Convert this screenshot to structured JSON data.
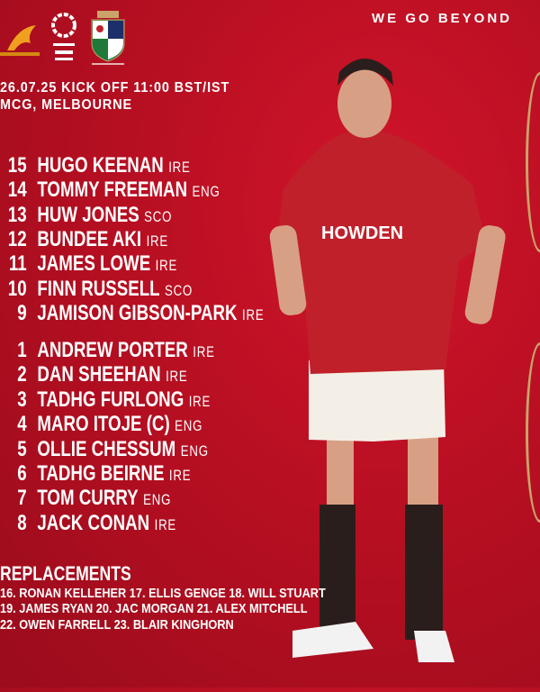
{
  "header": {
    "tagline": "WE GO BEYOND",
    "logos": {
      "wallabies": "Wallabies logo",
      "qatar": "QATAR AIRWAYS LIONS",
      "lions_crest": "SINCE 1888"
    },
    "match_line": "26.07.25 KICK OFF 11:00 BST/IST",
    "venue": "MCG, MELBOURNE"
  },
  "backs": [
    {
      "number": "15",
      "name": "HUGO KEENAN",
      "nation": "IRE"
    },
    {
      "number": "14",
      "name": "TOMMY FREEMAN",
      "nation": "ENG"
    },
    {
      "number": "13",
      "name": "HUW JONES",
      "nation": "SCO"
    },
    {
      "number": "12",
      "name": "BUNDEE AKI",
      "nation": "IRE"
    },
    {
      "number": "11",
      "name": "JAMES LOWE",
      "nation": "IRE"
    },
    {
      "number": "10",
      "name": "FINN RUSSELL",
      "nation": "SCO"
    },
    {
      "number": "9",
      "name": "JAMISON GIBSON-PARK",
      "nation": "IRE"
    }
  ],
  "forwards": [
    {
      "number": "1",
      "name": "ANDREW PORTER",
      "nation": "IRE"
    },
    {
      "number": "2",
      "name": "DAN SHEEHAN",
      "nation": "IRE"
    },
    {
      "number": "3",
      "name": "TADHG FURLONG",
      "nation": "IRE"
    },
    {
      "number": "4",
      "name": "MARO ITOJE (C)",
      "nation": "ENG"
    },
    {
      "number": "5",
      "name": "OLLIE CHESSUM",
      "nation": "ENG"
    },
    {
      "number": "6",
      "name": "TADHG BEIRNE",
      "nation": "IRE"
    },
    {
      "number": "7",
      "name": "TOM CURRY",
      "nation": "ENG"
    },
    {
      "number": "8",
      "name": "JACK CONAN",
      "nation": "IRE"
    }
  ],
  "replacements": {
    "title": "REPLACEMENTS",
    "lines": [
      "16. RONAN KELLEHER 17. ELLIS GENGE 18. WILL STUART",
      "19. JAMES RYAN 20. JAC MORGAN 21. ALEX MITCHELL",
      "22. OWEN FARRELL 23. BLAIR KINGHORN"
    ]
  },
  "player_photo": {
    "sponsor": "HOWDEN"
  },
  "colors": {
    "background": "#b80f22",
    "jersey": "#c0202a",
    "gold": "#c9a36a"
  }
}
